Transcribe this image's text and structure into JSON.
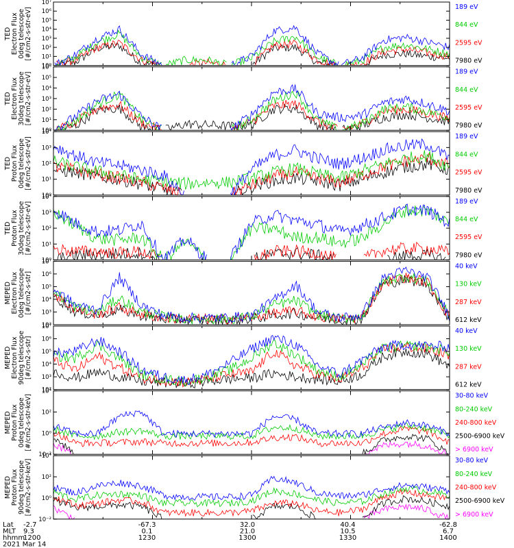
{
  "chart_data": [
    {
      "type": "line",
      "ylabel": [
        "TED",
        "Electron Flux",
        "0deg telescope",
        "[#/cm2-s-str-eV]"
      ],
      "yticks": [
        "10⁰",
        "10¹",
        "10²",
        "10³",
        "10⁴",
        "10⁵",
        "10⁶",
        "10⁷"
      ],
      "ylim_exp": [
        0,
        7
      ],
      "series": [
        {
          "name": "7980 eV",
          "color": "#000000",
          "level": [
            0,
            0.35,
            1.9,
            2.2,
            0.2,
            0,
            0,
            0,
            0,
            0,
            1.9,
            2.0,
            0.3,
            0,
            0,
            1.2,
            1.3,
            1.0,
            0.8
          ]
        },
        {
          "name": "2595 eV",
          "color": "#ff0000",
          "level": [
            0,
            0.6,
            2.0,
            2.5,
            0.6,
            0,
            0,
            0.3,
            0,
            0,
            2.2,
            2.4,
            0.6,
            0,
            0.2,
            1.5,
            1.8,
            1.4,
            1.0
          ]
        },
        {
          "name": "844 eV",
          "color": "#00cc00",
          "level": [
            0,
            0.9,
            2.6,
            3.5,
            0.9,
            0,
            0.6,
            0.6,
            0,
            0.8,
            2.6,
            3.2,
            0.9,
            0,
            0.5,
            2.0,
            2.3,
            1.8,
            1.3
          ]
        },
        {
          "name": "189 eV",
          "color": "#0000ff",
          "level": [
            0,
            1.2,
            3.0,
            4.0,
            1.2,
            0,
            0,
            0,
            0,
            1.0,
            3.8,
            4.2,
            1.3,
            0,
            0.8,
            2.8,
            3.1,
            2.6,
            2.0
          ]
        }
      ]
    },
    {
      "type": "line",
      "ylabel": [
        "TED",
        "Electron Flux",
        "30deg telescope",
        "[#/cm2-s-str-eV]"
      ],
      "yticks": [
        "10⁰",
        "10¹",
        "10²",
        "10³",
        "10⁴",
        "10⁵",
        "10⁶"
      ],
      "ylim_exp": [
        0,
        6
      ],
      "series": [
        {
          "name": "7980 eV",
          "color": "#000000",
          "level": [
            0,
            0.4,
            1.9,
            2.1,
            0.3,
            0,
            0.6,
            0.5,
            0.4,
            0.5,
            2.0,
            2.1,
            0.5,
            0,
            0.4,
            1.2,
            1.5,
            1.2,
            0.8
          ]
        },
        {
          "name": "2595 eV",
          "color": "#ff0000",
          "level": [
            0,
            0.7,
            2.1,
            2.4,
            0.7,
            0,
            0,
            0,
            0,
            0.8,
            2.3,
            2.5,
            0.8,
            0,
            0.6,
            1.8,
            2.0,
            1.6,
            1.1
          ]
        },
        {
          "name": "844 eV",
          "color": "#00cc00",
          "level": [
            0,
            0.9,
            2.5,
            3.4,
            1.0,
            0,
            0,
            0,
            0,
            1.0,
            2.8,
            3.6,
            1.0,
            0,
            0.6,
            2.0,
            2.2,
            1.8,
            1.2
          ]
        },
        {
          "name": "189 eV",
          "color": "#0000ff",
          "level": [
            0,
            1.3,
            2.8,
            3.4,
            1.3,
            0,
            0,
            0,
            0,
            1.5,
            3.6,
            3.9,
            1.6,
            1.2,
            1.4,
            2.6,
            3.0,
            2.5,
            1.8
          ]
        }
      ]
    },
    {
      "type": "line",
      "ylabel": [
        "TED",
        "Proton Flux",
        "0deg telescope",
        "[#/cm2-s-str-eV]"
      ],
      "yticks": [
        "10⁰",
        "10¹",
        "10²",
        "10³",
        "10⁴"
      ],
      "ylim_exp": [
        0,
        4.5
      ],
      "series": [
        {
          "name": "7980 eV",
          "color": "#000000",
          "level": [
            1.8,
            1.6,
            1.3,
            1.1,
            0.8,
            0.4,
            0,
            0,
            0,
            0.6,
            1.0,
            1.2,
            1.0,
            0.7,
            1.1,
            1.6,
            2.0,
            2.2,
            1.8
          ]
        },
        {
          "name": "2595 eV",
          "color": "#ff0000",
          "level": [
            2.0,
            1.8,
            1.5,
            1.2,
            0.9,
            0.5,
            0,
            0,
            0,
            0.7,
            1.3,
            1.6,
            1.2,
            0.9,
            1.4,
            2.0,
            2.4,
            2.6,
            2.1
          ]
        },
        {
          "name": "844 eV",
          "color": "#00cc00",
          "level": [
            2.4,
            2.0,
            1.7,
            1.4,
            1.1,
            1.0,
            0.8,
            0.9,
            0.9,
            1.2,
            1.6,
            1.9,
            1.5,
            1.2,
            1.7,
            2.2,
            2.6,
            2.8,
            2.0
          ]
        },
        {
          "name": "189 eV",
          "color": "#0000ff",
          "level": [
            3.5,
            2.8,
            2.3,
            2.1,
            1.8,
            1.4,
            0,
            0,
            0,
            1.8,
            2.8,
            3.2,
            2.6,
            2.2,
            2.6,
            3.2,
            3.5,
            3.6,
            2.6
          ]
        }
      ]
    },
    {
      "type": "line",
      "ylabel": [
        "TED",
        "Proton Flux",
        "30deg telescope",
        "[#/cm2-s-str-eV]"
      ],
      "yticks": [
        "10⁰",
        "10¹",
        "10²",
        "10³",
        "10⁴"
      ],
      "ylim_exp": [
        0,
        4.5
      ],
      "series": [
        {
          "name": "7980 eV",
          "color": "#000000",
          "level": [
            0,
            0.3,
            0.4,
            0.4,
            0.5,
            0,
            0,
            0,
            0,
            0,
            0.4,
            0.5,
            0.3,
            0,
            0,
            0,
            0.3,
            0.3,
            0
          ]
        },
        {
          "name": "2595 eV",
          "color": "#ff0000",
          "level": [
            0.8,
            0.6,
            0.6,
            0.5,
            0.6,
            0,
            0,
            0,
            0,
            0,
            0.6,
            0.6,
            0.5,
            0,
            0,
            0.7,
            0.8,
            0.8,
            0.5
          ]
        },
        {
          "name": "844 eV",
          "color": "#00cc00",
          "level": [
            3.4,
            2.4,
            1.5,
            1.4,
            1.6,
            0,
            1.3,
            0,
            0,
            2.2,
            2.2,
            1.6,
            1.6,
            1.2,
            1.5,
            2.6,
            3.5,
            3.5,
            2.6
          ]
        },
        {
          "name": "189 eV",
          "color": "#0000ff",
          "level": [
            3.6,
            2.6,
            2.0,
            2.1,
            2.6,
            0,
            1.5,
            0,
            0,
            2.6,
            3.2,
            2.8,
            2.5,
            2.0,
            2.4,
            3.0,
            3.6,
            3.5,
            2.6
          ]
        }
      ]
    },
    {
      "type": "line",
      "ylabel": [
        "MEPED",
        "Electron Flux",
        "0deg telescope",
        "[#/cm2-s-str]"
      ],
      "yticks": [
        "10²",
        "10³",
        "10⁴",
        "10⁵",
        "10⁶",
        "10⁷"
      ],
      "ylim_exp": [
        1.5,
        7
      ],
      "series": [
        {
          "name": "612 keV",
          "color": "#000000",
          "level": [
            4.0,
            2.6,
            2.3,
            2.8,
            2.3,
            2.0,
            1.9,
            1.9,
            1.9,
            2.0,
            2.3,
            2.5,
            2.1,
            1.9,
            2.0,
            5.0,
            5.4,
            5.0,
            2.0
          ]
        },
        {
          "name": "287 keV",
          "color": "#ff0000",
          "level": [
            4.2,
            2.8,
            2.4,
            3.0,
            2.4,
            2.1,
            2.0,
            2.0,
            2.0,
            2.1,
            2.5,
            2.7,
            2.2,
            2.0,
            2.1,
            5.2,
            5.6,
            5.2,
            2.1
          ]
        },
        {
          "name": "130 keV",
          "color": "#00cc00",
          "level": [
            4.4,
            3.0,
            2.6,
            3.8,
            2.6,
            2.2,
            2.0,
            2.0,
            2.0,
            2.2,
            3.2,
            3.6,
            2.4,
            2.0,
            2.2,
            5.3,
            5.7,
            5.3,
            2.2
          ]
        },
        {
          "name": "40 keV",
          "color": "#0000ff",
          "level": [
            4.6,
            3.2,
            2.8,
            5.6,
            3.2,
            2.3,
            2.1,
            2.1,
            2.1,
            2.3,
            3.6,
            5.0,
            2.6,
            2.1,
            2.3,
            5.6,
            6.2,
            5.6,
            2.3
          ]
        }
      ]
    },
    {
      "type": "line",
      "ylabel": [
        "MEPED",
        "Electron Flux",
        "90deg telescope",
        "[#/cm2-s-str]"
      ],
      "yticks": [
        "10²",
        "10³",
        "10⁴",
        "10⁵",
        "10⁶",
        "10⁷"
      ],
      "ylim_exp": [
        1.5,
        7
      ],
      "series": [
        {
          "name": "612 keV",
          "color": "#000000",
          "level": [
            3.0,
            2.5,
            3.0,
            2.6,
            2.2,
            2.1,
            2.0,
            2.2,
            2.4,
            2.5,
            2.9,
            2.6,
            2.4,
            2.2,
            2.8,
            4.4,
            4.8,
            4.6,
            3.5
          ]
        },
        {
          "name": "287 keV",
          "color": "#ff0000",
          "level": [
            4.0,
            3.2,
            4.4,
            3.4,
            2.5,
            2.3,
            2.1,
            2.4,
            2.8,
            3.0,
            4.8,
            3.6,
            2.8,
            2.4,
            3.3,
            5.0,
            5.2,
            5.0,
            4.5
          ]
        },
        {
          "name": "130 keV",
          "color": "#00cc00",
          "level": [
            4.4,
            4.2,
            5.4,
            4.2,
            2.8,
            2.4,
            2.2,
            2.6,
            3.2,
            4.2,
            5.6,
            4.5,
            3.2,
            2.6,
            3.6,
            5.1,
            5.3,
            5.2,
            4.8
          ]
        },
        {
          "name": "40 keV",
          "color": "#0000ff",
          "level": [
            4.6,
            4.8,
            5.8,
            4.8,
            3.2,
            2.6,
            2.3,
            2.8,
            3.8,
            5.0,
            6.0,
            5.4,
            3.6,
            2.8,
            4.0,
            5.2,
            5.4,
            5.3,
            5.2
          ]
        }
      ]
    },
    {
      "type": "line",
      "ylabel": [
        "MEPED",
        "Proton Flux",
        "0deg telescope",
        "[#/cm2-s-str-keV]"
      ],
      "yticks": [
        "10⁻²",
        "10⁰",
        "10²",
        "10⁴"
      ],
      "ylim_exp": [
        -2,
        6
      ],
      "series": [
        {
          "name": "> 6900 keV",
          "color": "#ff00ff",
          "level": [
            -0.8,
            -2.0,
            -2.0,
            -2.0,
            -2.0,
            -2.0,
            -2.0,
            -2.0,
            -2.0,
            -2.0,
            -2.0,
            -2.0,
            -2.0,
            -2.0,
            -2.0,
            -0.9,
            -0.6,
            -0.9,
            -2.0
          ]
        },
        {
          "name": "2500-6900 keV",
          "color": "#000000",
          "level": [
            0.2,
            -2.0,
            -2.0,
            -2.0,
            -2.0,
            -2.0,
            -2.0,
            -2.0,
            -2.0,
            -2.0,
            -2.0,
            -2.0,
            -2.0,
            -2.0,
            -2.0,
            -0.2,
            0.3,
            0.0,
            -2.0
          ]
        },
        {
          "name": "240-800 keV",
          "color": "#ff0000",
          "level": [
            0.8,
            -0.6,
            -0.6,
            -0.5,
            -0.4,
            -0.6,
            -0.6,
            -0.6,
            -0.6,
            -0.5,
            0.1,
            0.2,
            -0.6,
            -0.6,
            -0.6,
            0.6,
            1.2,
            0.9,
            -0.6
          ]
        },
        {
          "name": "80-240 keV",
          "color": "#00cc00",
          "level": [
            1.2,
            0.3,
            0.3,
            0.8,
            1.0,
            0.3,
            0.3,
            0.3,
            0.3,
            0.3,
            1.4,
            1.3,
            0.3,
            0.3,
            0.3,
            1.1,
            1.6,
            1.3,
            0.3
          ]
        },
        {
          "name": "30-80 keV",
          "color": "#0000ff",
          "level": [
            1.6,
            0.6,
            0.6,
            2.8,
            3.4,
            0.6,
            0.6,
            0.6,
            0.6,
            0.6,
            2.8,
            2.4,
            0.6,
            0.6,
            0.6,
            1.4,
            2.0,
            1.6,
            0.6
          ]
        }
      ]
    },
    {
      "type": "line",
      "ylabel": [
        "MEPED",
        "Proton Flux",
        "90deg telescope",
        "[#/cm2-s-str-keV]"
      ],
      "yticks": [
        "10⁻²",
        "10⁰",
        "10²",
        "10⁴"
      ],
      "ylim_exp": [
        -2,
        6
      ],
      "series": [
        {
          "name": "> 6900 keV",
          "color": "#ff00ff",
          "level": [
            -0.6,
            -2.0,
            -2.0,
            -2.0,
            -2.0,
            -2.0,
            -2.0,
            -2.0,
            -2.0,
            -2.0,
            -2.0,
            -2.0,
            -2.0,
            -2.0,
            -2.0,
            -0.8,
            -0.4,
            -0.8,
            -2.0
          ]
        },
        {
          "name": "2500-6900 keV",
          "color": "#000000",
          "level": [
            0.4,
            -0.6,
            -0.4,
            -0.2,
            -0.4,
            -2.0,
            -2.0,
            -2.0,
            -2.0,
            -2.0,
            -0.4,
            -0.4,
            -2.0,
            -2.0,
            -2.0,
            0.0,
            0.6,
            0.2,
            -0.4
          ]
        },
        {
          "name": "240-800 keV",
          "color": "#ff0000",
          "level": [
            0.9,
            -0.3,
            0.0,
            0.4,
            0.2,
            -1.2,
            -1.2,
            -1.2,
            -1.2,
            -1.0,
            0.0,
            0.0,
            -1.0,
            -1.2,
            -0.8,
            0.8,
            1.4,
            1.0,
            0.6
          ]
        },
        {
          "name": "80-240 keV",
          "color": "#00cc00",
          "level": [
            1.4,
            0.5,
            1.0,
            1.2,
            1.0,
            0.0,
            0.0,
            0.0,
            0.0,
            0.3,
            1.6,
            1.2,
            0.4,
            0.0,
            0.2,
            1.2,
            1.9,
            1.5,
            1.0
          ]
        },
        {
          "name": "30-80 keV",
          "color": "#0000ff",
          "level": [
            2.0,
            1.3,
            2.2,
            2.6,
            2.2,
            1.0,
            0.8,
            0.8,
            0.8,
            1.0,
            3.2,
            2.6,
            1.3,
            0.9,
            1.0,
            1.8,
            2.3,
            2.0,
            1.6
          ]
        }
      ]
    }
  ],
  "footer": {
    "rows": [
      {
        "label": "Lat",
        "values": [
          "-2.7",
          "-67.3",
          "32.0",
          "40.4",
          "-62.8"
        ]
      },
      {
        "label": "MLT",
        "values": [
          "9.3",
          "0.1",
          "21.0",
          "10.5",
          "6.7"
        ]
      },
      {
        "label": "hhmm",
        "values": [
          "1200",
          "1230",
          "1300",
          "1330",
          "1400"
        ]
      }
    ],
    "date": "2021 Mar 14"
  }
}
